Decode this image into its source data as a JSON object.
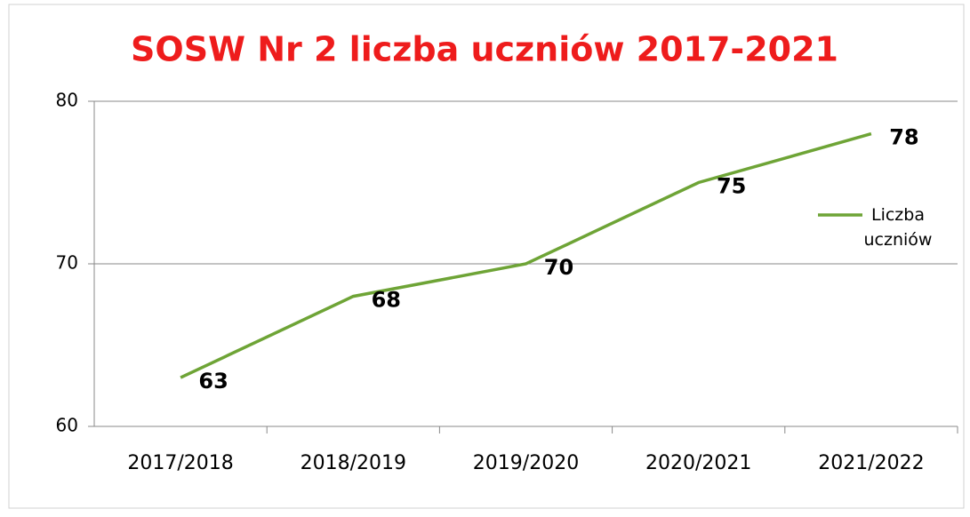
{
  "chart_data": {
    "type": "line",
    "title": "SOSW Nr 2 liczba uczniów 2017-2021",
    "categories": [
      "2017/2018",
      "2018/2019",
      "2019/2020",
      "2020/2021",
      "2021/2022"
    ],
    "series": [
      {
        "name": "Liczba uczniów",
        "color": "#6ea436",
        "values": [
          63,
          68,
          70,
          75,
          78
        ]
      }
    ],
    "ylim": [
      60,
      80
    ],
    "yticks": [
      60,
      70,
      80
    ],
    "grid": true,
    "legend": "right"
  }
}
